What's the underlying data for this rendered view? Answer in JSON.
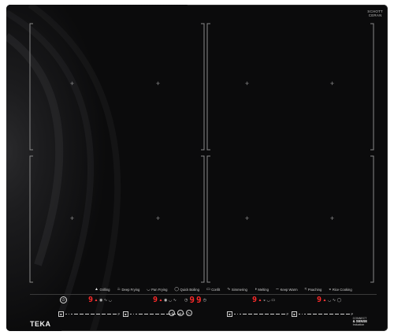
{
  "brand": {
    "top_logo": [
      "SCHOTT",
      "CERAN"
    ],
    "name": "TEKA",
    "badge_lines": [
      "CONNECT",
      "& SENSE",
      "Induction"
    ]
  },
  "cooking_modes": [
    {
      "icon": "grilling-icon",
      "glyph": "▲",
      "label": "Grilling"
    },
    {
      "icon": "deep-frying-icon",
      "glyph": "♨",
      "label": "Deep Frying"
    },
    {
      "icon": "pan-frying-icon",
      "glyph": "◡",
      "label": "Pan Frying"
    },
    {
      "icon": "quick-boiling-icon",
      "glyph": "◯",
      "label": "Quick Boiling"
    },
    {
      "icon": "confit-icon",
      "glyph": "▭",
      "label": "Confit"
    },
    {
      "icon": "simmering-icon",
      "glyph": "∿",
      "label": "Simmering"
    },
    {
      "icon": "melting-icon",
      "glyph": "◑",
      "label": "Melting"
    },
    {
      "icon": "keep-warm-icon",
      "glyph": "∽",
      "label": "Keep Warm"
    },
    {
      "icon": "poaching-icon",
      "glyph": "≈",
      "label": "Poaching"
    },
    {
      "icon": "rice-cooking-icon",
      "glyph": "◒",
      "label": "Rice Cooking"
    }
  ],
  "zones": [
    {
      "level": "9",
      "symbols": [
        "▲",
        "◉",
        "∿",
        "◡"
      ]
    },
    {
      "level": "9",
      "symbols": [
        "▲",
        "◉",
        "◡",
        "∿"
      ]
    },
    {
      "level": "9",
      "symbols": [
        "▲",
        "◒",
        "◡",
        "▭"
      ]
    },
    {
      "level": "9",
      "symbols": [
        "▲",
        "◡",
        "∿",
        "◯"
      ]
    }
  ],
  "timer": {
    "digit1": "9",
    "digit2": "9",
    "left_symbol": "◷",
    "right_symbol": "◷"
  },
  "slider_end_label": "P",
  "center_buttons": [
    "◁",
    "○",
    "▷"
  ],
  "power_symbol": "⏻"
}
